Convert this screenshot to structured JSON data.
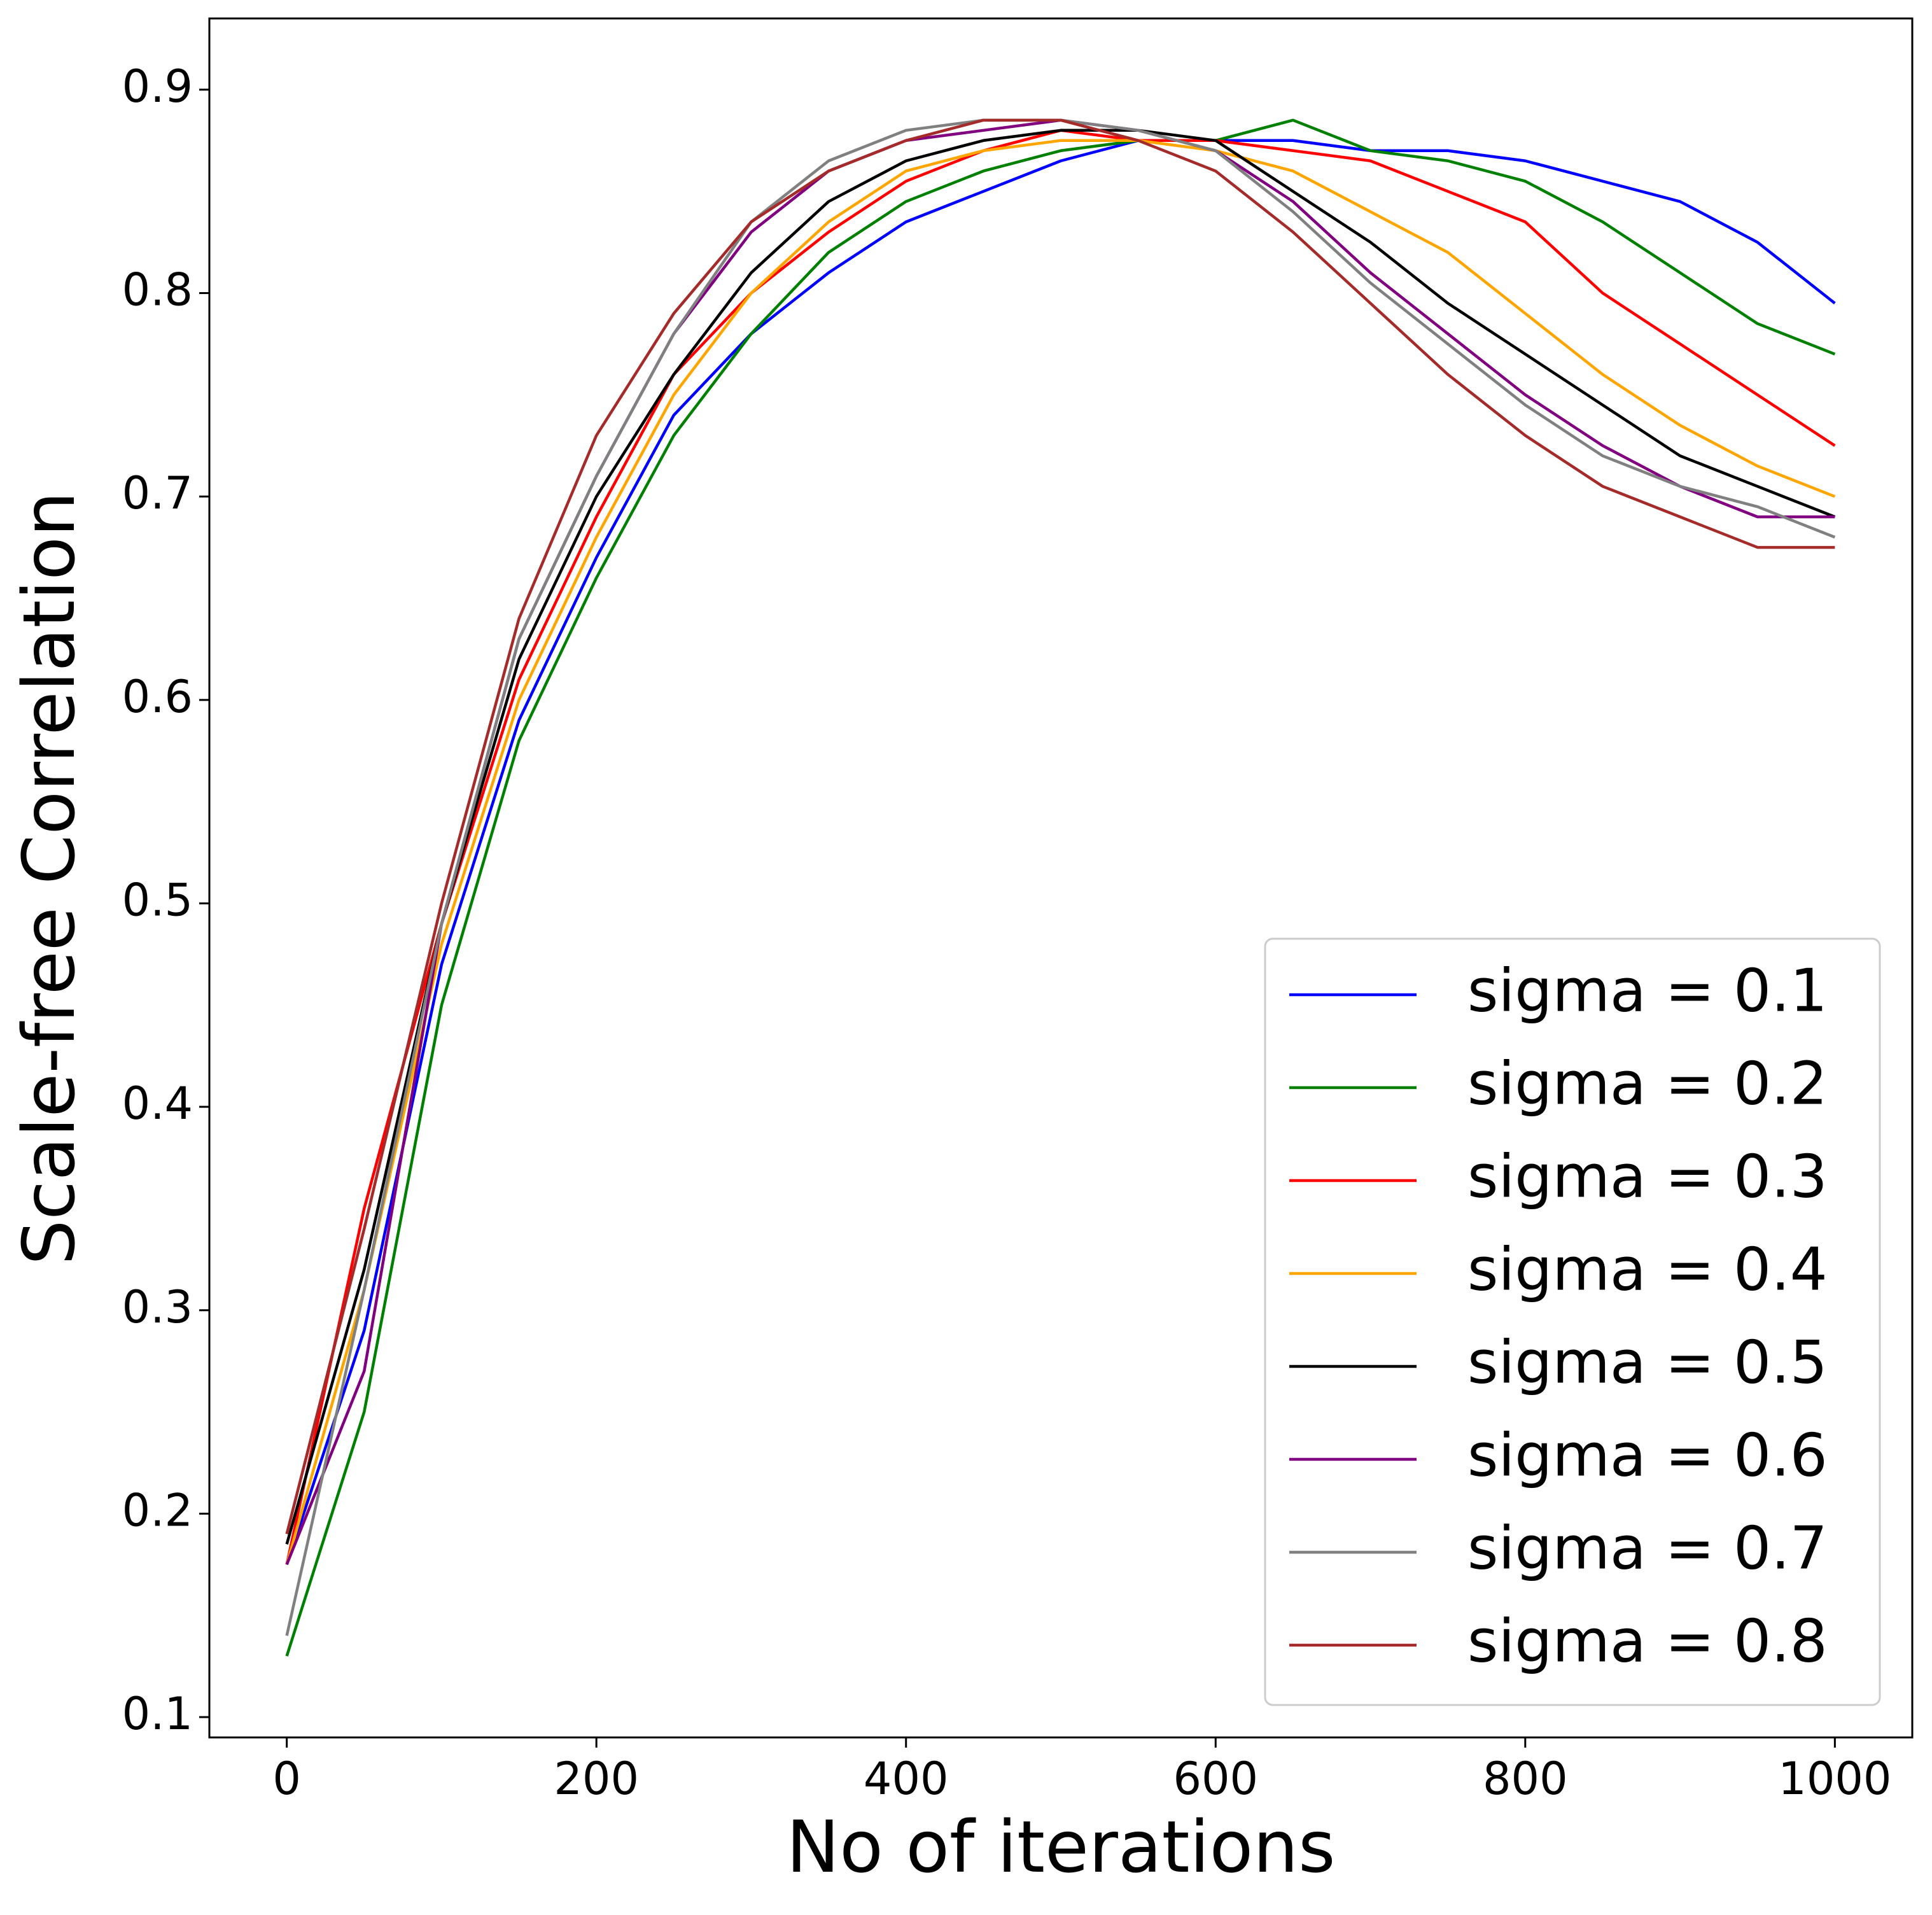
{
  "chart_data": {
    "type": "line",
    "x_label": "No of iterations",
    "y_label": "Scale-free Correlation",
    "x": [
      0,
      50,
      100,
      150,
      200,
      250,
      300,
      350,
      400,
      450,
      500,
      550,
      600,
      650,
      700,
      750,
      800,
      850,
      900,
      950,
      1000
    ],
    "series": [
      {
        "name": "sigma = 0.1",
        "color": "#0000ff",
        "values": [
          0.175,
          0.29,
          0.47,
          0.59,
          0.67,
          0.74,
          0.78,
          0.81,
          0.835,
          0.85,
          0.865,
          0.875,
          0.875,
          0.875,
          0.87,
          0.87,
          0.865,
          0.855,
          0.845,
          0.825,
          0.795
        ]
      },
      {
        "name": "sigma = 0.2",
        "color": "#008000",
        "values": [
          0.13,
          0.25,
          0.45,
          0.58,
          0.66,
          0.73,
          0.78,
          0.82,
          0.845,
          0.86,
          0.87,
          0.875,
          0.875,
          0.885,
          0.87,
          0.865,
          0.855,
          0.835,
          0.81,
          0.785,
          0.77
        ]
      },
      {
        "name": "sigma = 0.3",
        "color": "#ff0000",
        "values": [
          0.175,
          0.35,
          0.49,
          0.61,
          0.69,
          0.76,
          0.8,
          0.83,
          0.855,
          0.87,
          0.88,
          0.875,
          0.875,
          0.87,
          0.865,
          0.85,
          0.835,
          0.8,
          0.775,
          0.75,
          0.725
        ]
      },
      {
        "name": "sigma = 0.4",
        "color": "#ffa500",
        "values": [
          0.175,
          0.31,
          0.48,
          0.6,
          0.68,
          0.75,
          0.8,
          0.835,
          0.86,
          0.87,
          0.875,
          0.875,
          0.87,
          0.86,
          0.84,
          0.82,
          0.79,
          0.76,
          0.735,
          0.715,
          0.7
        ]
      },
      {
        "name": "sigma = 0.5",
        "color": "#000000",
        "values": [
          0.185,
          0.32,
          0.49,
          0.62,
          0.7,
          0.76,
          0.81,
          0.845,
          0.865,
          0.875,
          0.88,
          0.88,
          0.875,
          0.85,
          0.825,
          0.795,
          0.77,
          0.745,
          0.72,
          0.705,
          0.69
        ]
      },
      {
        "name": "sigma = 0.6",
        "color": "#800080",
        "values": [
          0.175,
          0.27,
          0.49,
          0.63,
          0.71,
          0.78,
          0.83,
          0.86,
          0.875,
          0.88,
          0.885,
          0.88,
          0.87,
          0.845,
          0.81,
          0.78,
          0.75,
          0.725,
          0.705,
          0.69,
          0.69
        ]
      },
      {
        "name": "sigma = 0.7",
        "color": "#808080",
        "values": [
          0.14,
          0.31,
          0.49,
          0.63,
          0.71,
          0.78,
          0.835,
          0.865,
          0.88,
          0.885,
          0.885,
          0.88,
          0.87,
          0.84,
          0.805,
          0.775,
          0.745,
          0.72,
          0.705,
          0.695,
          0.68
        ]
      },
      {
        "name": "sigma = 0.8",
        "color": "#a52a2a",
        "values": [
          0.19,
          0.34,
          0.5,
          0.64,
          0.73,
          0.79,
          0.835,
          0.86,
          0.875,
          0.885,
          0.885,
          0.875,
          0.86,
          0.83,
          0.795,
          0.76,
          0.73,
          0.705,
          0.69,
          0.675,
          0.675
        ]
      }
    ],
    "xlim": [
      -50,
      1050
    ],
    "xticks": [
      0,
      200,
      400,
      600,
      800,
      1000
    ],
    "ylim": [
      0.09,
      0.935
    ],
    "yticks": [
      0.1,
      0.2,
      0.3,
      0.4,
      0.5,
      0.6,
      0.7,
      0.8,
      0.9
    ],
    "legend": "lower right"
  }
}
